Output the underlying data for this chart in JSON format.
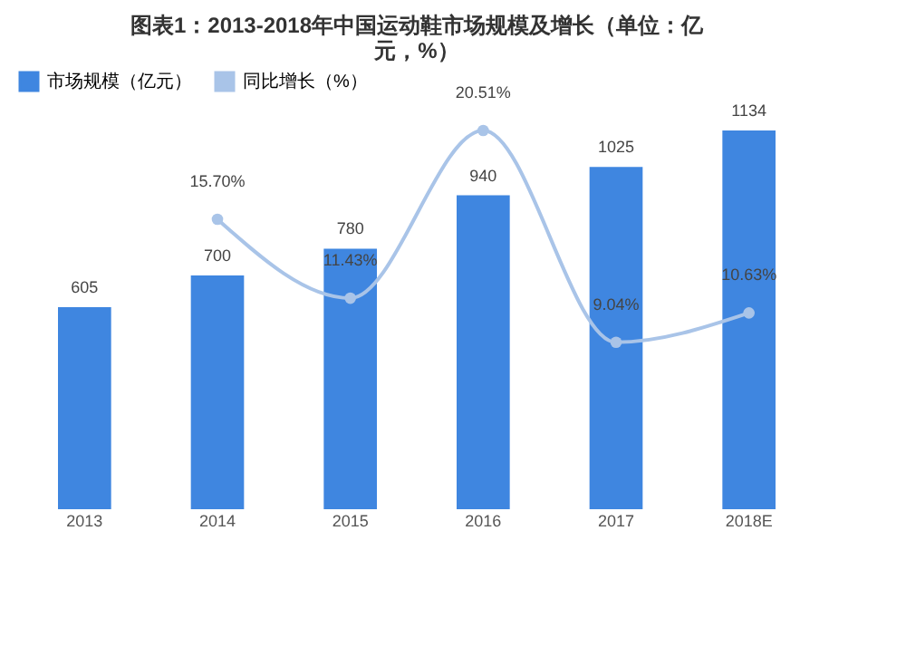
{
  "chart_data": {
    "type": "bar",
    "title": [
      "图表1：2013-2018年中国运动鞋市场规模及增长（单位：亿",
      "元，%）"
    ],
    "categories": [
      "2013",
      "2014",
      "2015",
      "2016",
      "2017",
      "2018E"
    ],
    "series": [
      {
        "name": "市场规模（亿元）",
        "color": "#3f86e0",
        "values": [
          605,
          700,
          780,
          940,
          1025,
          1134
        ],
        "value_labels": [
          "605",
          "700",
          "780",
          "940",
          "1025",
          "1134"
        ]
      },
      {
        "name": "同比增长（%）",
        "type": "line",
        "axis": "y2",
        "color": "#a9c4e8",
        "marker": "circle",
        "values": [
          null,
          15.7,
          11.43,
          20.51,
          9.04,
          10.63
        ],
        "value_labels": [
          null,
          "15.70%",
          "11.43%",
          "20.51%",
          "9.04%",
          "10.63%"
        ]
      }
    ],
    "tick_labels": "x",
    "legend": "top"
  }
}
